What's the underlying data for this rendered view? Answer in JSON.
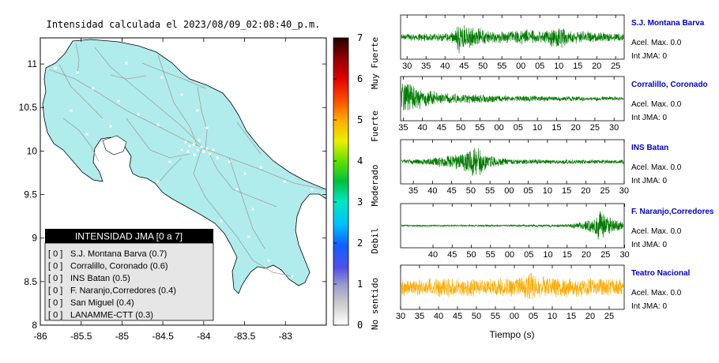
{
  "title": "Intensidad calculada el 2023/08/09_02:08:40_p.m.",
  "colorbar": {
    "ticks": [
      "0",
      "1",
      "2",
      "3",
      "4",
      "5",
      "6",
      "7"
    ],
    "categories": [
      "No sentido",
      "Debil",
      "Moderado",
      "Fuerte",
      "Muy Fuerte"
    ]
  },
  "legend": {
    "title": "INTENSIDAD JMA [0 a 7]",
    "rows": [
      {
        "code": "[ 0 ]",
        "label": "S.J. Montana Barva (0.7)"
      },
      {
        "code": "[ 0 ]",
        "label": "Corralillo, Coronado (0.6)"
      },
      {
        "code": "[ 0 ]",
        "label": "INS Batan (0.5)"
      },
      {
        "code": "[ 0 ]",
        "label": "F. Naranjo,Corredores (0.4)"
      },
      {
        "code": "[ 0 ]",
        "label": "San Miguel (0.4)"
      },
      {
        "code": "[ 0 ]",
        "label": "LANAMME-CTT (0.3)"
      }
    ]
  },
  "xlabel": "Tiempo (s)",
  "colors": {
    "land": "#b0ecec",
    "roads": "#a0a0a0",
    "trace_green": "#007a00",
    "trace_orange": "#ffaa00",
    "station_name": "#0000cc",
    "legend_title_bg": "#000000"
  },
  "chart_data": [
    {
      "type": "map",
      "xlim": [
        -86,
        -82.5
      ],
      "ylim": [
        8,
        11.3
      ],
      "x_ticks": [
        "-86",
        "-85.5",
        "-85",
        "-84.5",
        "-84",
        "-83.5",
        "-83"
      ],
      "y_ticks": [
        "8",
        "8.5",
        "9",
        "9.5",
        "10",
        "10.5",
        "11"
      ],
      "colorbar_range": [
        0,
        7
      ]
    },
    {
      "type": "line",
      "station": "S.J. Montana Barva",
      "acel_max": "Acel. Max. 0.0",
      "int_jma": "Int JMA: 0",
      "x_ticks": [
        "30",
        "35",
        "40",
        "45",
        "50",
        "55",
        "00",
        "05",
        "10",
        "15",
        "20",
        "25"
      ],
      "first_tick_frac": 0.029,
      "tick_step_frac": 0.0848,
      "color": "green",
      "seed": 11,
      "envelope": [
        [
          0,
          0.18
        ],
        [
          0.18,
          0.22
        ],
        [
          0.24,
          0.3
        ],
        [
          0.26,
          0.85
        ],
        [
          0.28,
          0.7
        ],
        [
          0.31,
          0.55
        ],
        [
          0.34,
          0.55
        ],
        [
          0.4,
          0.32
        ],
        [
          0.47,
          0.3
        ],
        [
          0.55,
          0.4
        ],
        [
          0.62,
          0.3
        ],
        [
          0.67,
          0.45
        ],
        [
          0.72,
          0.6
        ],
        [
          0.76,
          0.35
        ],
        [
          0.84,
          0.3
        ],
        [
          0.9,
          0.25
        ],
        [
          1,
          0.2
        ]
      ]
    },
    {
      "type": "line",
      "station": "Corralillo, Coronado",
      "acel_max": "Acel. Max. 0.0",
      "int_jma": "Int JMA: 0",
      "x_ticks": [
        "35",
        "40",
        "45",
        "50",
        "55",
        "00",
        "05",
        "10",
        "15",
        "20",
        "25",
        "30"
      ],
      "first_tick_frac": 0.012,
      "tick_step_frac": 0.0857,
      "color": "green",
      "seed": 23,
      "envelope": [
        [
          0,
          0.95
        ],
        [
          0.03,
          0.85
        ],
        [
          0.06,
          0.6
        ],
        [
          0.1,
          0.45
        ],
        [
          0.2,
          0.28
        ],
        [
          0.4,
          0.2
        ],
        [
          0.6,
          0.15
        ],
        [
          0.8,
          0.12
        ],
        [
          1,
          0.1
        ]
      ]
    },
    {
      "type": "line",
      "station": "INS Batan",
      "acel_max": "Acel. Max. 0.0",
      "int_jma": "Int JMA: 0",
      "x_ticks": [
        "35",
        "40",
        "45",
        "50",
        "55",
        "00",
        "05",
        "10",
        "15",
        "20",
        "25",
        "30"
      ],
      "first_tick_frac": 0.057,
      "tick_step_frac": 0.0857,
      "color": "green",
      "seed": 37,
      "envelope": [
        [
          0,
          0.12
        ],
        [
          0.1,
          0.15
        ],
        [
          0.18,
          0.3
        ],
        [
          0.28,
          0.45
        ],
        [
          0.34,
          0.95
        ],
        [
          0.37,
          0.5
        ],
        [
          0.42,
          0.25
        ],
        [
          0.5,
          0.15
        ],
        [
          0.7,
          0.12
        ],
        [
          1,
          0.12
        ]
      ]
    },
    {
      "type": "line",
      "station": "F. Naranjo,Corredores",
      "acel_max": "Acel. Max. 0.0",
      "int_jma": "Int JMA: 0",
      "x_ticks": [
        "40",
        "45",
        "50",
        "55",
        "00",
        "05",
        "10",
        "15",
        "20",
        "25",
        "30"
      ],
      "first_tick_frac": 0.145,
      "tick_step_frac": 0.0857,
      "color": "green",
      "seed": 53,
      "envelope": [
        [
          0,
          0.04
        ],
        [
          0.5,
          0.05
        ],
        [
          0.75,
          0.08
        ],
        [
          0.82,
          0.25
        ],
        [
          0.86,
          0.45
        ],
        [
          0.9,
          0.8
        ],
        [
          0.93,
          0.5
        ],
        [
          0.97,
          0.3
        ],
        [
          1,
          0.25
        ]
      ]
    },
    {
      "type": "line",
      "station": "Teatro Nacional",
      "acel_max": "Acel. Max. 0.0",
      "int_jma": "Int JMA: 0",
      "x_ticks": [
        "30",
        "35",
        "40",
        "45",
        "50",
        "55",
        "00",
        "05",
        "10",
        "15",
        "20",
        "25"
      ],
      "first_tick_frac": 0.0,
      "tick_step_frac": 0.0848,
      "color": "orange",
      "seed": 71,
      "envelope": [
        [
          0,
          0.45
        ],
        [
          0.2,
          0.5
        ],
        [
          0.4,
          0.45
        ],
        [
          0.55,
          0.55
        ],
        [
          0.58,
          0.95
        ],
        [
          0.61,
          0.6
        ],
        [
          0.7,
          0.5
        ],
        [
          0.85,
          0.45
        ],
        [
          1,
          0.45
        ]
      ]
    }
  ]
}
